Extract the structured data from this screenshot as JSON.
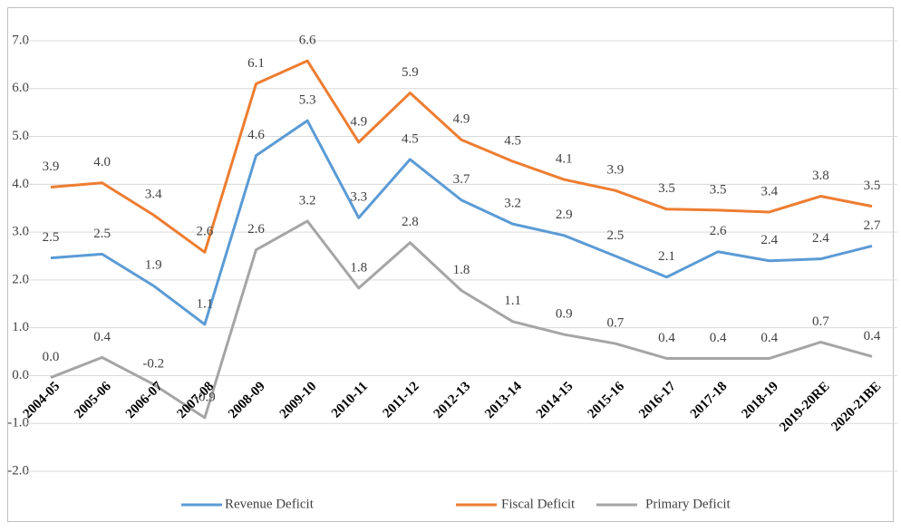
{
  "chart_data": {
    "type": "line",
    "categories": [
      "2004-05",
      "2005-06",
      "2006-07",
      "2007-08",
      "2008-09",
      "2009-10",
      "2010-11",
      "2011-12",
      "2012-13",
      "2013-14",
      "2014-15",
      "2015-16",
      "2016-17",
      "2017-18",
      "2018-19",
      "2019-20RE",
      "2020-21BE"
    ],
    "series": [
      {
        "name": "Revenue Deficit",
        "color": "#5b9bd5",
        "values": [
          2.46,
          2.54,
          1.88,
          1.07,
          4.6,
          5.33,
          3.3,
          4.52,
          3.67,
          3.17,
          2.93,
          2.5,
          2.06,
          2.59,
          2.4,
          2.44,
          2.71
        ],
        "value_labels": [
          "2.5",
          "2.5",
          "1.9",
          "1.1",
          "4.6",
          "5.3",
          "3.3",
          "4.5",
          "3.7",
          "3.2",
          "2.9",
          "2.5",
          "2.1",
          "2.6",
          "2.4",
          "2.4",
          "2.7"
        ]
      },
      {
        "name": "Fiscal Deficit",
        "color": "#ed7d31",
        "values": [
          3.94,
          4.03,
          3.36,
          2.58,
          6.1,
          6.58,
          4.88,
          5.91,
          4.93,
          4.48,
          4.1,
          3.87,
          3.48,
          3.46,
          3.42,
          3.75,
          3.54
        ],
        "value_labels": [
          "3.9",
          "4.0",
          "3.4",
          "2.6",
          "6.1",
          "6.6",
          "4.9",
          "5.9",
          "4.9",
          "4.5",
          "4.1",
          "3.9",
          "3.5",
          "3.5",
          "3.4",
          "3.8",
          "3.5"
        ]
      },
      {
        "name": "Primary Deficit",
        "color": "#a5a5a5",
        "values": [
          -0.04,
          0.38,
          -0.18,
          -0.88,
          2.63,
          3.23,
          1.83,
          2.78,
          1.78,
          1.13,
          0.86,
          0.67,
          0.36,
          0.36,
          0.36,
          0.7,
          0.4
        ],
        "value_labels": [
          "0.0",
          "0.4",
          "-0.2",
          "-0.9",
          "2.6",
          "3.2",
          "1.8",
          "2.8",
          "1.8",
          "1.1",
          "0.9",
          "0.7",
          "0.4",
          "0.4",
          "0.4",
          "0.7",
          "0.4"
        ]
      }
    ],
    "ylim": [
      -2,
      7
    ],
    "yticks": [
      {
        "value": -2,
        "label": "-2.0"
      },
      {
        "value": -1,
        "label": "-1.0"
      },
      {
        "value": 0,
        "label": "0.0"
      },
      {
        "value": 1,
        "label": "1.0"
      },
      {
        "value": 2,
        "label": "2.0"
      },
      {
        "value": 3,
        "label": "3.0"
      },
      {
        "value": 4,
        "label": "4.0"
      },
      {
        "value": 5,
        "label": "5.0"
      },
      {
        "value": 6,
        "label": "6.0"
      },
      {
        "value": 7,
        "label": "7.0"
      }
    ],
    "grid": true,
    "legend": "bottom"
  }
}
